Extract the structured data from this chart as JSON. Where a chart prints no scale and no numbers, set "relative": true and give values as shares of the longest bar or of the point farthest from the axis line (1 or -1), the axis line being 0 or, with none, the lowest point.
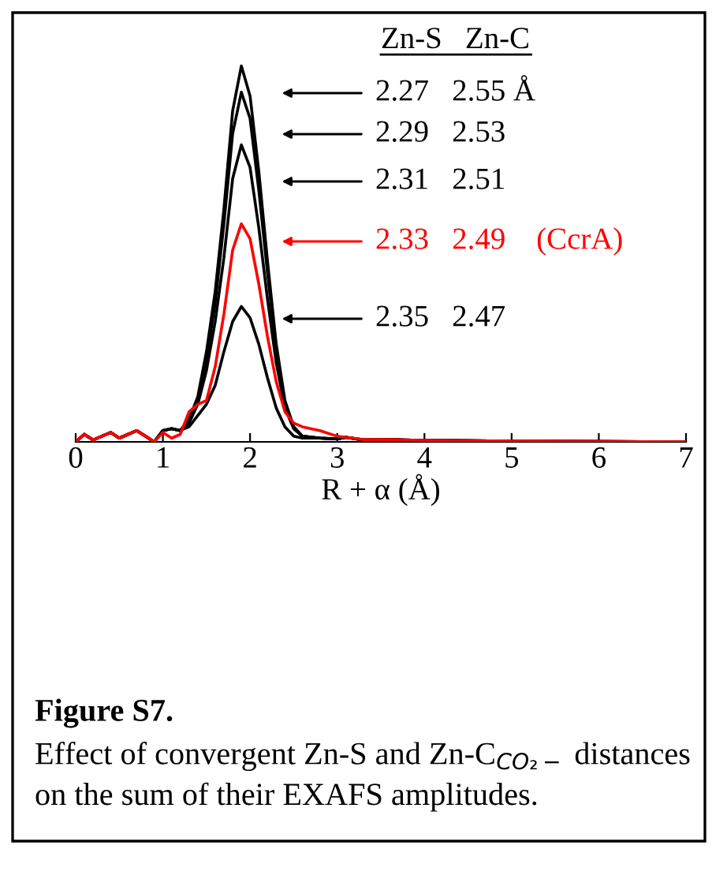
{
  "chart_data": {
    "type": "line",
    "relative": true,
    "xlabel": "R + α (Å)",
    "xlim": [
      0,
      7
    ],
    "xticks": [
      0,
      1,
      2,
      3,
      4,
      5,
      6,
      7
    ],
    "grid": false,
    "legend": false,
    "marker": "none",
    "line_style": "solid",
    "title": "Figure S7.",
    "x": [
      0,
      0.05,
      0.1,
      0.2,
      0.3,
      0.4,
      0.5,
      0.6,
      0.7,
      0.8,
      0.9,
      1.0,
      1.1,
      1.2,
      1.3,
      1.4,
      1.5,
      1.6,
      1.7,
      1.8,
      1.9,
      2.0,
      2.1,
      2.2,
      2.3,
      2.4,
      2.5,
      2.6,
      2.8,
      3.0,
      3.1,
      3.3,
      3.6,
      4,
      5,
      6,
      7
    ],
    "series": [
      {
        "color": "#000000",
        "values": [
          0,
          0.01,
          0.02,
          0.005,
          0.015,
          0.025,
          0.01,
          0.02,
          0.03,
          0.015,
          0,
          0.03,
          0.035,
          0.03,
          0.06,
          0.12,
          0.24,
          0.4,
          0.62,
          0.88,
          1.0,
          0.92,
          0.72,
          0.48,
          0.26,
          0.11,
          0.04,
          0.015,
          0.01,
          0.008,
          0.012,
          0.005,
          0.006,
          0.004,
          0.002,
          0.001,
          0
        ]
      },
      {
        "color": "#000000",
        "values": [
          0,
          0.01,
          0.02,
          0.005,
          0.015,
          0.025,
          0.01,
          0.02,
          0.03,
          0.015,
          0,
          0.03,
          0.035,
          0.03,
          0.06,
          0.11,
          0.22,
          0.37,
          0.58,
          0.82,
          0.93,
          0.86,
          0.67,
          0.45,
          0.24,
          0.1,
          0.04,
          0.015,
          0.01,
          0.008,
          0.012,
          0.005,
          0.006,
          0.004,
          0.002,
          0.001,
          0
        ]
      },
      {
        "color": "#000000",
        "values": [
          0,
          0.01,
          0.02,
          0.005,
          0.015,
          0.025,
          0.01,
          0.02,
          0.03,
          0.015,
          0,
          0.03,
          0.035,
          0.03,
          0.05,
          0.1,
          0.19,
          0.32,
          0.49,
          0.7,
          0.79,
          0.73,
          0.57,
          0.38,
          0.21,
          0.09,
          0.035,
          0.015,
          0.01,
          0.008,
          0.012,
          0.005,
          0.006,
          0.004,
          0.002,
          0.001,
          0
        ]
      },
      {
        "color": "#ff0000",
        "values": [
          0,
          0.01,
          0.02,
          0.005,
          0.015,
          0.025,
          0.01,
          0.02,
          0.03,
          0.015,
          0,
          0.025,
          0.01,
          0.02,
          0.08,
          0.1,
          0.11,
          0.2,
          0.34,
          0.51,
          0.58,
          0.54,
          0.42,
          0.28,
          0.16,
          0.08,
          0.05,
          0.04,
          0.03,
          0.015,
          0.012,
          0.006,
          0.006,
          0.004,
          0.002,
          0.001,
          0
        ]
      },
      {
        "color": "#000000",
        "values": [
          0,
          0.01,
          0.02,
          0.005,
          0.015,
          0.025,
          0.01,
          0.02,
          0.03,
          0.015,
          0,
          0.03,
          0.035,
          0.03,
          0.04,
          0.07,
          0.1,
          0.15,
          0.24,
          0.32,
          0.36,
          0.33,
          0.26,
          0.17,
          0.09,
          0.04,
          0.015,
          0.01,
          0.01,
          0.008,
          0.012,
          0.005,
          0.006,
          0.004,
          0.002,
          0.001,
          0
        ]
      }
    ],
    "annotations": [
      "Zn-S   Zn-C",
      "2.27   2.55 Å",
      "2.29   2.53",
      "2.31   2.51",
      "2.33   2.49    (CcrA)",
      "2.35   2.47",
      "Effect of convergent Zn-S and Zn-C$_{CO₂−}$ distances on the sum of their EXAFS amplitudes."
    ]
  }
}
